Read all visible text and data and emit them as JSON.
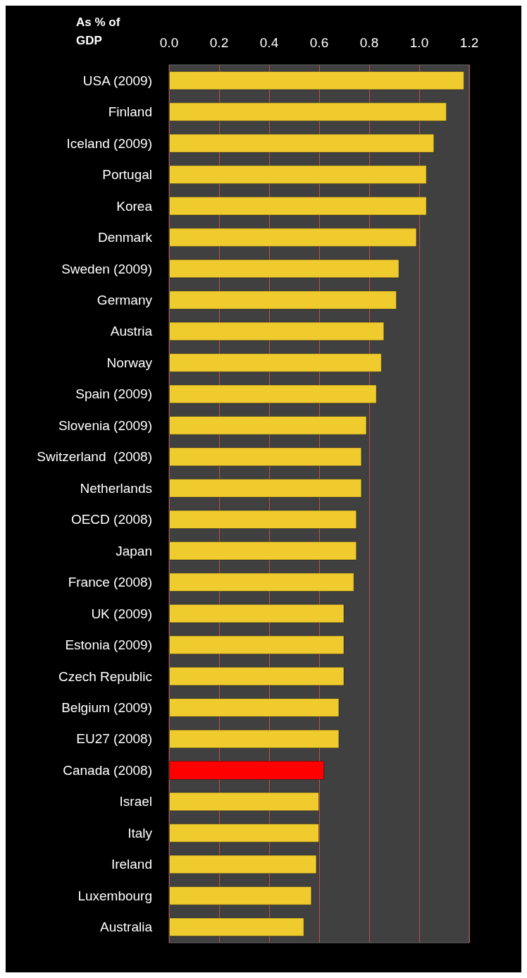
{
  "chart_data": {
    "type": "bar",
    "orientation": "horizontal",
    "xlabel": "As % of GDP",
    "categories": [
      "USA (2009)",
      "Finland",
      "Iceland (2009)",
      "Portugal",
      "Korea",
      "Denmark",
      "Sweden (2009)",
      "Germany",
      "Austria",
      "Norway",
      "Spain (2009)",
      "Slovenia (2009)",
      "Switzerland  (2008)",
      "Netherlands",
      "OECD (2008)",
      "Japan",
      "France (2008)",
      "UK (2009)",
      "Estonia (2009)",
      "Czech Republic",
      "Belgium (2009)",
      "EU27 (2008)",
      "Canada (2008)",
      "Israel",
      "Italy",
      "Ireland",
      "Luxembourg",
      "Australia"
    ],
    "values": [
      1.18,
      1.11,
      1.06,
      1.03,
      1.03,
      0.99,
      0.92,
      0.91,
      0.86,
      0.85,
      0.83,
      0.79,
      0.77,
      0.77,
      0.75,
      0.75,
      0.74,
      0.7,
      0.7,
      0.7,
      0.68,
      0.68,
      0.62,
      0.6,
      0.6,
      0.59,
      0.57,
      0.54
    ],
    "colors": [
      "#f0cb2e",
      "#f0cb2e",
      "#f0cb2e",
      "#f0cb2e",
      "#f0cb2e",
      "#f0cb2e",
      "#f0cb2e",
      "#f0cb2e",
      "#f0cb2e",
      "#f0cb2e",
      "#f0cb2e",
      "#f0cb2e",
      "#f0cb2e",
      "#f0cb2e",
      "#f0cb2e",
      "#f0cb2e",
      "#f0cb2e",
      "#f0cb2e",
      "#f0cb2e",
      "#f0cb2e",
      "#f0cb2e",
      "#f0cb2e",
      "#ff0000",
      "#f0cb2e",
      "#f0cb2e",
      "#f0cb2e",
      "#f0cb2e",
      "#f0cb2e"
    ],
    "xlim": [
      0,
      1.2
    ],
    "xticks": [
      {
        "value": 0,
        "label": "0.0"
      },
      0.2,
      0.4,
      0.6,
      0.8,
      {
        "value": 1,
        "label": "1.0"
      },
      1.2
    ],
    "grid": "x"
  }
}
